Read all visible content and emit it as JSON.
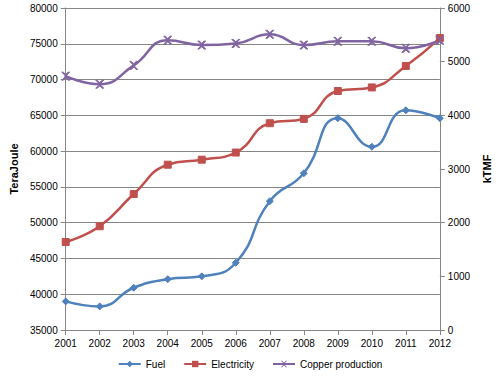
{
  "chart_data": {
    "type": "line",
    "categories": [
      "2001",
      "2002",
      "2003",
      "2004",
      "2005",
      "2006",
      "2007",
      "2008",
      "2009",
      "2010",
      "2011",
      "2012"
    ],
    "y_label": "TeraJoule",
    "y2_label": "kTMF",
    "ylim": [
      35000,
      80000
    ],
    "yticks": [
      35000,
      40000,
      45000,
      50000,
      55000,
      60000,
      65000,
      70000,
      75000,
      80000
    ],
    "y2lim": [
      0,
      6000
    ],
    "y2ticks": [
      0,
      1000,
      2000,
      3000,
      4000,
      5000,
      6000
    ],
    "grid": true,
    "legend": "bottom",
    "line_style": "smooth",
    "series": [
      {
        "name": "Fuel",
        "color": "#4F81BD",
        "marker": "diamond",
        "values": [
          39000,
          38300,
          40900,
          42100,
          42500,
          44400,
          53000,
          56900,
          64600,
          60600,
          65700,
          64600
        ]
      },
      {
        "name": "Electricity",
        "color": "#C0504D",
        "marker": "square",
        "values": [
          47300,
          49500,
          54000,
          58100,
          58800,
          59800,
          63900,
          64500,
          68400,
          68900,
          71900,
          75800
        ]
      },
      {
        "name": "Copper production",
        "color": "#8064A2",
        "marker": "x",
        "axis": "y2",
        "values": [
          4730,
          4580,
          4930,
          5400,
          5310,
          5340,
          5510,
          5310,
          5380,
          5380,
          5250,
          5400
        ]
      }
    ]
  }
}
